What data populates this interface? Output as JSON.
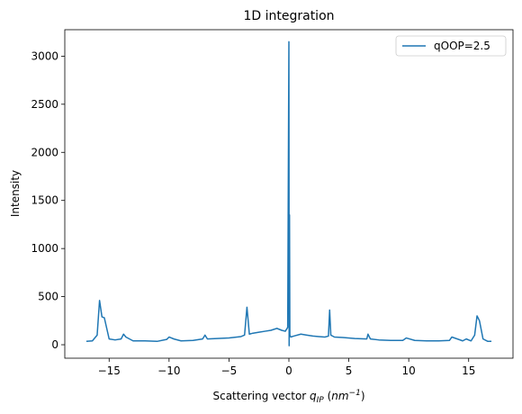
{
  "chart_data": {
    "type": "line",
    "title": "1D integration",
    "xlabel": [
      "Scattering vector ",
      "q",
      "IP",
      " (",
      "nm",
      "−1",
      ")"
    ],
    "ylabel": "Intensity",
    "x": [
      -16.9,
      -16.4,
      -16.0,
      -15.8,
      -15.6,
      -15.4,
      -15.0,
      -14.5,
      -14.0,
      -13.8,
      -13.6,
      -13.0,
      -12.0,
      -11.0,
      -10.2,
      -10.0,
      -9.6,
      -9.0,
      -8.0,
      -7.2,
      -7.0,
      -6.8,
      -6.0,
      -5.0,
      -4.0,
      -3.7,
      -3.5,
      -3.3,
      -3.0,
      -2.5,
      -2.0,
      -1.5,
      -1.0,
      -0.6,
      -0.3,
      -0.1,
      0,
      0.02,
      0.05,
      0.08,
      0.15,
      0.4,
      1.0,
      1.5,
      2.0,
      2.5,
      3.0,
      3.3,
      3.4,
      3.5,
      3.8,
      4.5,
      5.5,
      6.5,
      6.6,
      6.8,
      7.5,
      8.5,
      9.5,
      9.8,
      10.5,
      11.5,
      12.5,
      13.4,
      13.6,
      14.5,
      14.8,
      15.2,
      15.5,
      15.7,
      15.9,
      16.2,
      16.6,
      16.9
    ],
    "series": [
      {
        "name": "qOOP=2.5",
        "color": "#1f77b4",
        "values": [
          35,
          40,
          100,
          460,
          290,
          280,
          60,
          50,
          60,
          110,
          80,
          40,
          40,
          35,
          55,
          80,
          60,
          40,
          45,
          60,
          100,
          60,
          65,
          70,
          85,
          100,
          390,
          110,
          120,
          130,
          140,
          150,
          170,
          150,
          140,
          180,
          3150,
          -10,
          1350,
          100,
          80,
          90,
          110,
          100,
          90,
          85,
          80,
          90,
          360,
          100,
          80,
          75,
          65,
          60,
          110,
          60,
          50,
          45,
          45,
          70,
          45,
          40,
          40,
          45,
          80,
          40,
          60,
          40,
          100,
          300,
          250,
          60,
          35,
          35
        ]
      }
    ],
    "xlim": [
      -18.7,
      18.7
    ],
    "ylim": [
      -140,
      3275
    ],
    "xticks": [
      {
        "value": -15,
        "label": "−15"
      },
      {
        "value": -10,
        "label": "−10"
      },
      {
        "value": -5,
        "label": "−5"
      },
      0,
      5,
      10,
      15
    ],
    "yticks": [
      0,
      500,
      1000,
      1500,
      2000,
      2500,
      3000
    ],
    "grid": false,
    "legend": "upper right"
  }
}
